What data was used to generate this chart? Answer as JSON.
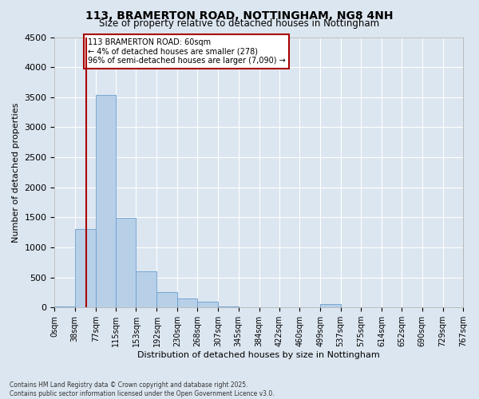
{
  "title_line1": "113, BRAMERTON ROAD, NOTTINGHAM, NG8 4NH",
  "title_line2": "Size of property relative to detached houses in Nottingham",
  "xlabel": "Distribution of detached houses by size in Nottingham",
  "ylabel": "Number of detached properties",
  "annotation_title": "113 BRAMERTON ROAD: 60sqm",
  "annotation_line2": "← 4% of detached houses are smaller (278)",
  "annotation_line3": "96% of semi-detached houses are larger (7,090) →",
  "property_size_sqm": 60,
  "bin_edges": [
    0,
    38,
    77,
    115,
    153,
    192,
    230,
    268,
    307,
    345,
    384,
    422,
    460,
    499,
    537,
    575,
    614,
    652,
    690,
    729,
    767
  ],
  "bar_values": [
    20,
    1300,
    3540,
    1490,
    600,
    260,
    150,
    100,
    20,
    5,
    0,
    0,
    0,
    50,
    0,
    0,
    0,
    0,
    0,
    0
  ],
  "bar_color": "#b8cfe8",
  "bar_edge_color": "#6a9fd0",
  "vline_color": "#aa0000",
  "background_color": "#dce6f0",
  "grid_color": "#ffffff",
  "ylim": [
    0,
    4500
  ],
  "yticks": [
    0,
    500,
    1000,
    1500,
    2000,
    2500,
    3000,
    3500,
    4000,
    4500
  ],
  "footer_line1": "Contains HM Land Registry data © Crown copyright and database right 2025.",
  "footer_line2": "Contains public sector information licensed under the Open Government Licence v3.0."
}
